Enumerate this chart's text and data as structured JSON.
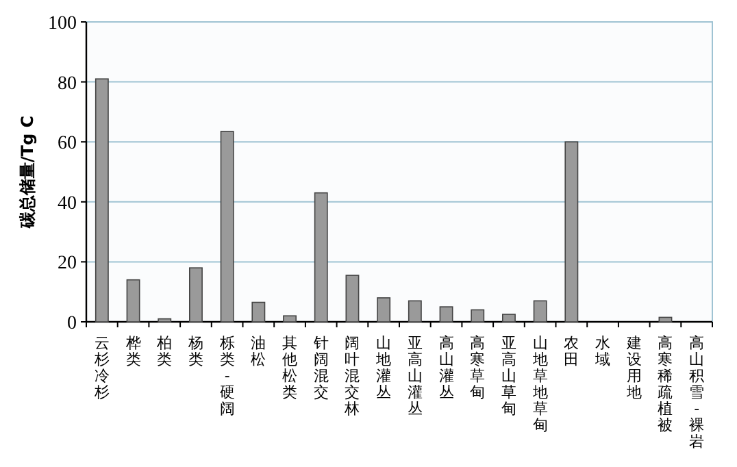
{
  "chart_data": {
    "type": "bar",
    "ylabel": "碳总储量/Tg C",
    "categories": [
      "云杉冷杉",
      "桦类",
      "柏类",
      "杨类",
      "栎类-硬阔",
      "油松",
      "其他松类",
      "针阔混交",
      "阔叶混交林",
      "山地灌丛",
      "亚高山灌丛",
      "高山灌丛",
      "高寒草甸",
      "亚高山草甸",
      "山地草地草甸",
      "农田",
      "水域",
      "建设用地",
      "高寒稀疏植被",
      "高山积雪-裸岩"
    ],
    "values": [
      81,
      14,
      1,
      18,
      63.5,
      6.5,
      2,
      43,
      15.5,
      8,
      7,
      5,
      4,
      2.5,
      7,
      60,
      0,
      0,
      1.5,
      0
    ],
    "color": "#9a9a9a",
    "ylim": [
      0,
      100
    ],
    "yticks": [
      0,
      20,
      40,
      60,
      80,
      100
    ],
    "grid": "y"
  }
}
